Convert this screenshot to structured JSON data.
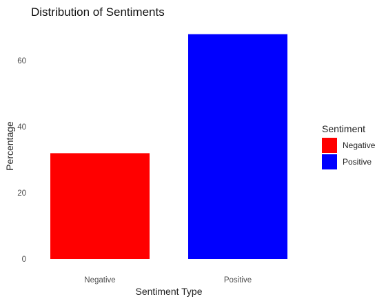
{
  "chart_data": {
    "type": "bar",
    "title": "Distribution of Sentiments",
    "xlabel": "Sentiment Type",
    "ylabel": "Percentage",
    "categories": [
      "Negative",
      "Positive"
    ],
    "values": [
      32,
      68
    ],
    "colors": [
      "#ff0000",
      "#0000ff"
    ],
    "ylim": [
      0,
      70
    ],
    "yticks": [
      0,
      20,
      40,
      60
    ],
    "grid": false,
    "legend": {
      "title": "Sentiment",
      "position": "right",
      "entries": [
        {
          "label": "Negative",
          "color": "#ff0000"
        },
        {
          "label": "Positive",
          "color": "#0000ff"
        }
      ]
    }
  }
}
